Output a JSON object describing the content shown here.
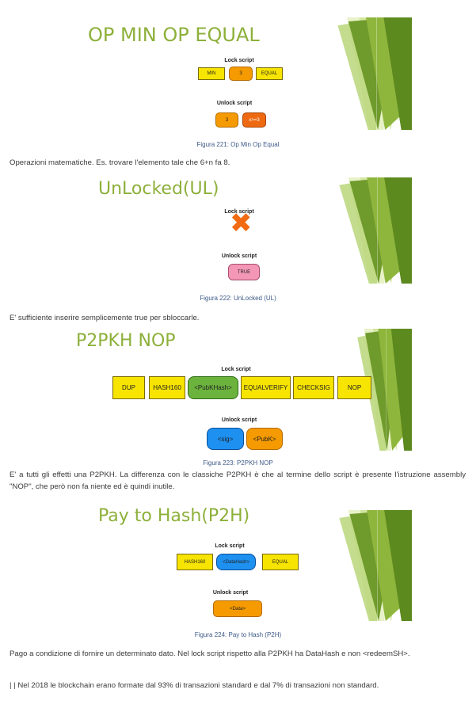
{
  "slides": [
    {
      "title": "OP MIN OP EQUAL",
      "lock_label": "Lock script",
      "lock_items": [
        "MIN",
        "3",
        "EQUAL"
      ],
      "unlock_label": "Unlock script",
      "unlock_items": [
        "3",
        "x>=3"
      ],
      "caption": "Figura 221: Op Min Op Equal"
    },
    {
      "title": "UnLocked(UL)",
      "lock_label": "Lock script",
      "unlock_label": "Unlock script",
      "unlock_items": [
        "TRUE"
      ],
      "caption": "Figura 222: UnLocked (UL)"
    },
    {
      "title": "P2PKH NOP",
      "lock_label": "Lock script",
      "lock_items": [
        "DUP",
        "HASH160",
        "<PubKHash>",
        "EQUALVERIFY",
        "CHECKSIG",
        "NOP"
      ],
      "unlock_label": "Unlock script",
      "unlock_items": [
        "<sig>",
        "<PubK>"
      ],
      "caption": "Figura 223: P2PKH NOP"
    },
    {
      "title": "Pay to Hash(P2H)",
      "lock_label": "Lock script",
      "lock_items": [
        "HASH160",
        "<DataHash>",
        "EQUAL"
      ],
      "unlock_label": "Unlock script",
      "unlock_items": [
        "<Data>"
      ],
      "caption": "Figura 224: Pay to Hash (P2H)"
    }
  ],
  "paragraphs": {
    "p1": "Operazioni matematiche. Es. trovare l'elemento tale che 6+n fa 8.",
    "p2": "E' sufficiente inserire semplicemente true per sbloccarle.",
    "p3": "E' a tutti gli effetti una P2PKH. La differenza con le classiche P2PKH è che al termine dello script è presente l'istruzione assembly \"NOP\", che però non fa niente ed è quindi inutile.",
    "p4": "Pago a condizione di fornire un determinato dato. Nel lock script rispetto alla P2PKH ha DataHash e non <redeemSH>.",
    "p5": "| | Nel 2018 le blockchain erano formate dal 93% di transazioni standard e dal 7% di transazioni non standard."
  },
  "colors": {
    "title_green": "#8db03a",
    "yellow": "#f7e400",
    "orange": "#f59a00",
    "dark_orange": "#ee6a12",
    "green": "#6cb33e",
    "blue": "#1e90f0",
    "pink": "#f497b6",
    "caption_blue": "#3d5a88"
  }
}
